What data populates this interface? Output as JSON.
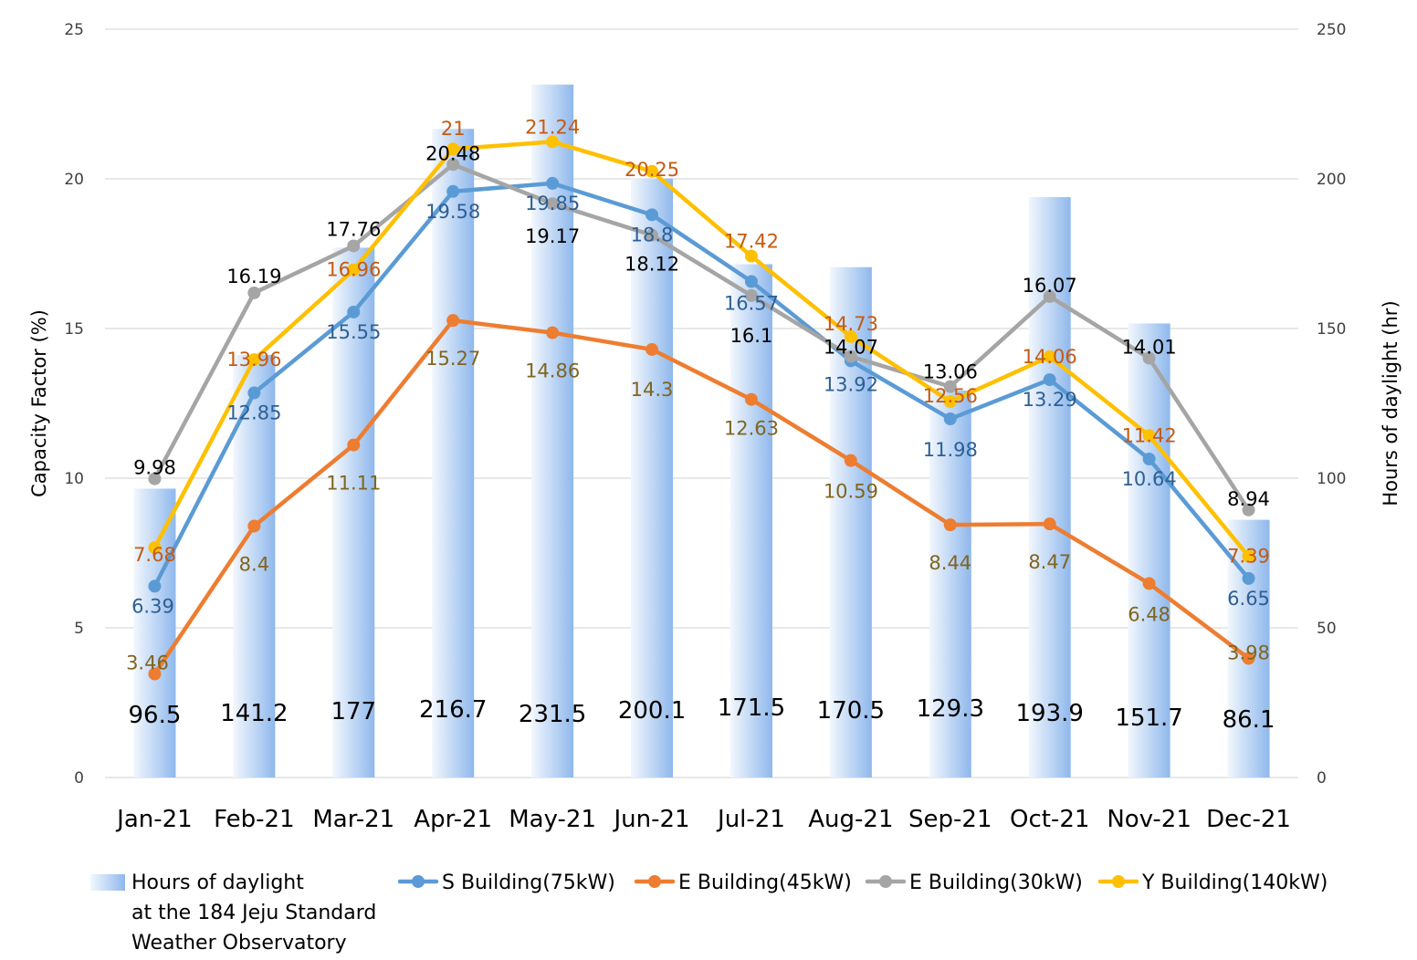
{
  "chart_data": {
    "type": "bar+line",
    "categories": [
      "Jan-21",
      "Feb-21",
      "Mar-21",
      "Apr-21",
      "May-21",
      "Jun-21",
      "Jul-21",
      "Aug-21",
      "Sep-21",
      "Oct-21",
      "Nov-21",
      "Dec-21"
    ],
    "left_axis": {
      "label": "Capacity Factor (%)",
      "range": [
        0,
        25
      ],
      "ticks": [
        "0",
        "5",
        "10",
        "15",
        "20",
        "25"
      ]
    },
    "right_axis": {
      "label": "Hours of daylight (hr)",
      "range": [
        0,
        250
      ],
      "ticks": [
        "0",
        "50",
        "100",
        "150",
        "200",
        "250"
      ]
    },
    "grid": true,
    "legend_position": "bottom",
    "bars": {
      "legend_lines": [
        "Hours of daylight",
        "at the 184 Jeju Standard",
        "Weather Observatory"
      ],
      "axis": "right",
      "values": [
        96.5,
        141.2,
        177,
        216.7,
        231.5,
        200.1,
        171.5,
        170.5,
        129.3,
        193.9,
        151.7,
        86.1
      ],
      "labels": [
        "96.5",
        "141.2",
        "177",
        "216.7",
        "231.5",
        "200.1",
        "171.5",
        "170.5",
        "129.3",
        "193.9",
        "151.7",
        "86.1"
      ],
      "color": "#9dc3f0"
    },
    "series": [
      {
        "name": "S Building(75kW)",
        "color": "#5b9bd5",
        "label_color": "#2e5f93",
        "values": [
          6.39,
          12.85,
          15.55,
          19.58,
          19.85,
          18.8,
          16.57,
          13.92,
          11.98,
          13.29,
          10.64,
          6.65
        ],
        "labels": [
          "6.39",
          "12.85",
          "15.55",
          "19.58",
          "19.85",
          "18.8",
          "16.57",
          "13.92",
          "11.98",
          "13.29",
          "10.64",
          "6.65"
        ]
      },
      {
        "name": "E Building(45kW)",
        "color": "#ed7d31",
        "label_color": "#7f6520",
        "values": [
          3.46,
          8.4,
          11.11,
          15.27,
          14.86,
          14.3,
          12.63,
          10.59,
          8.44,
          8.47,
          6.48,
          3.98
        ],
        "labels": [
          "3.46",
          "8.4",
          "11.11",
          "15.27",
          "14.86",
          "14.3",
          "12.63",
          "10.59",
          "8.44",
          "8.47",
          "6.48",
          "3.98"
        ]
      },
      {
        "name": "E Building(30kW)",
        "color": "#a5a5a5",
        "label_color": "#000000",
        "values": [
          9.98,
          16.19,
          17.76,
          20.48,
          19.17,
          18.12,
          16.1,
          14.07,
          13.06,
          16.07,
          14.01,
          8.94
        ],
        "labels": [
          "9.98",
          "16.19",
          "17.76",
          "20.48",
          "19.17",
          "18.12",
          "16.1",
          "14.07",
          "13.06",
          "16.07",
          "14.01",
          "8.94"
        ]
      },
      {
        "name": "Y Building(140kW)",
        "color": "#ffc000",
        "label_color": "#c55a11",
        "values": [
          7.68,
          13.96,
          16.96,
          21,
          21.24,
          20.25,
          17.42,
          14.73,
          12.56,
          14.06,
          11.42,
          7.39
        ],
        "labels": [
          "7.68",
          "13.96",
          "16.96",
          "21",
          "21.24",
          "20.25",
          "17.42",
          "14.73",
          "12.56",
          "14.06",
          "11.42",
          "7.39"
        ]
      }
    ]
  }
}
